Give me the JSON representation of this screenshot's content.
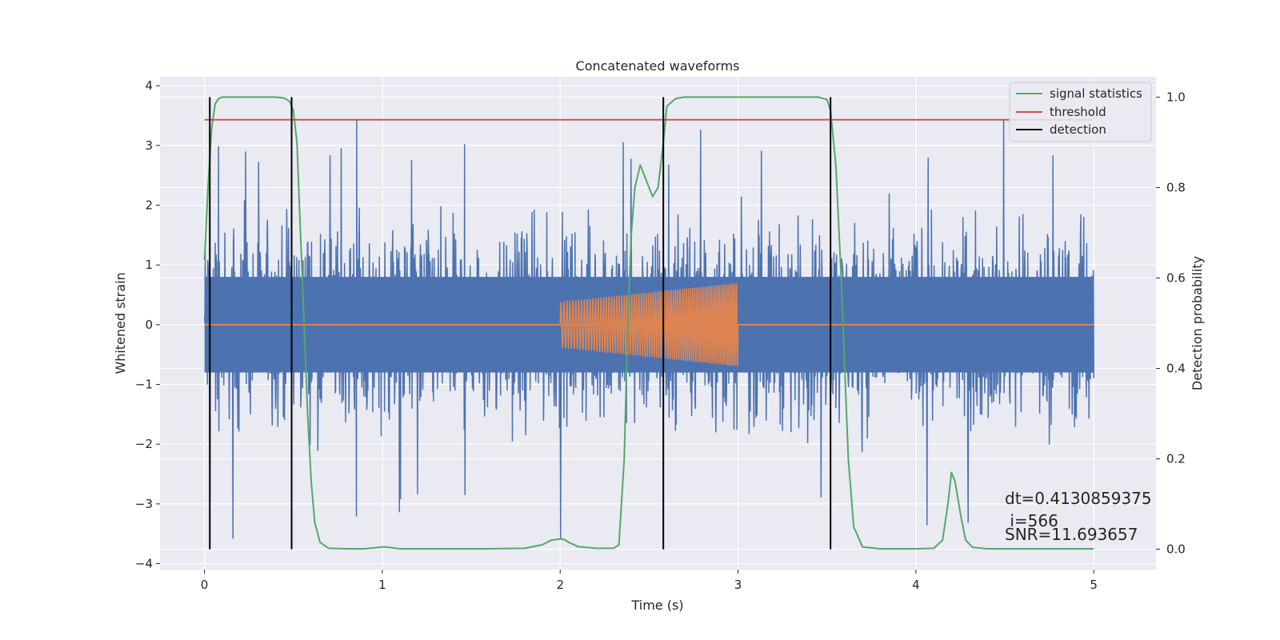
{
  "chart_data": {
    "type": "line",
    "title": "Concatenated waveforms",
    "xlabel": "Time (s)",
    "ylabel": "Whitened strain",
    "y2label": "Detection probability",
    "xlim": [
      -0.25,
      5.35
    ],
    "ylim": [
      -4.1,
      4.15
    ],
    "y2lim": [
      -0.045,
      1.045
    ],
    "grid": true,
    "legend_position": "top-right",
    "x_ticks": [
      0,
      1,
      2,
      3,
      4,
      5
    ],
    "x_tick_labels": [
      "0",
      "1",
      "2",
      "3",
      "4",
      "5"
    ],
    "y_ticks": [
      -4,
      -3,
      -2,
      -1,
      0,
      1,
      2,
      3,
      4
    ],
    "y_tick_labels": [
      "−4",
      "−3",
      "−2",
      "−1",
      "0",
      "1",
      "2",
      "3",
      "4"
    ],
    "y2_ticks": [
      0.0,
      0.2,
      0.4,
      0.6,
      0.8,
      1.0
    ],
    "y2_tick_labels": [
      "0.0",
      "0.2",
      "0.4",
      "0.6",
      "0.8",
      "1.0"
    ],
    "noise": {
      "color": "#4c72b0",
      "x_range": [
        0,
        5
      ],
      "core_amplitude": 0.8,
      "typical_peak": 2.3,
      "max_peak": 3.8,
      "min_trough": -3.65
    },
    "injected_signal": {
      "color": "#dd8452",
      "x_range": [
        2,
        3
      ],
      "amplitude_start": 0.38,
      "amplitude_end": 0.7,
      "baseline": 0
    },
    "series": [
      {
        "name": "signal statistics",
        "color": "#55a868",
        "axis": "right",
        "x": [
          0.0,
          0.02,
          0.04,
          0.06,
          0.08,
          0.1,
          0.15,
          0.2,
          0.3,
          0.4,
          0.45,
          0.48,
          0.5,
          0.52,
          0.54,
          0.56,
          0.58,
          0.6,
          0.62,
          0.65,
          0.7,
          0.8,
          0.9,
          1.0,
          1.02,
          1.1,
          1.3,
          1.6,
          1.8,
          1.9,
          1.95,
          2.0,
          2.02,
          2.05,
          2.1,
          2.2,
          2.3,
          2.33,
          2.36,
          2.38,
          2.4,
          2.42,
          2.45,
          2.47,
          2.5,
          2.52,
          2.55,
          2.58,
          2.6,
          2.65,
          2.7,
          2.8,
          3.0,
          3.3,
          3.45,
          3.5,
          3.52,
          3.55,
          3.58,
          3.6,
          3.62,
          3.65,
          3.7,
          3.8,
          4.0,
          4.1,
          4.15,
          4.18,
          4.2,
          4.22,
          4.25,
          4.28,
          4.32,
          4.4,
          4.6,
          5.0
        ],
        "y": [
          0.64,
          0.8,
          0.93,
          0.985,
          0.997,
          1.0,
          1.0,
          1.0,
          1.0,
          1.0,
          0.998,
          0.99,
          0.97,
          0.9,
          0.7,
          0.5,
          0.3,
          0.15,
          0.06,
          0.015,
          0.002,
          0.001,
          0.001,
          0.005,
          0.005,
          0.001,
          0.001,
          0.001,
          0.002,
          0.01,
          0.02,
          0.023,
          0.022,
          0.015,
          0.006,
          0.002,
          0.002,
          0.01,
          0.2,
          0.5,
          0.7,
          0.8,
          0.85,
          0.83,
          0.8,
          0.78,
          0.8,
          0.9,
          0.98,
          0.997,
          1.0,
          1.0,
          1.0,
          1.0,
          1.0,
          0.995,
          0.97,
          0.85,
          0.6,
          0.4,
          0.2,
          0.05,
          0.005,
          0.001,
          0.001,
          0.002,
          0.02,
          0.1,
          0.17,
          0.15,
          0.08,
          0.02,
          0.004,
          0.001,
          0.001,
          0.001
        ]
      },
      {
        "name": "threshold",
        "color": "#c44e52",
        "axis": "right",
        "x": [
          0,
          5
        ],
        "y": [
          0.95,
          0.95
        ]
      },
      {
        "name": "detection",
        "color": "#000000",
        "axis": "right",
        "type": "vlines",
        "x": [
          0.03,
          0.49,
          2.58,
          3.52
        ],
        "ymin": 0.0,
        "ymax": 1.0
      }
    ],
    "annotations": {
      "dt": "dt=0.4130859375",
      "i": " i=566",
      "snr": "SNR=11.693657"
    }
  }
}
